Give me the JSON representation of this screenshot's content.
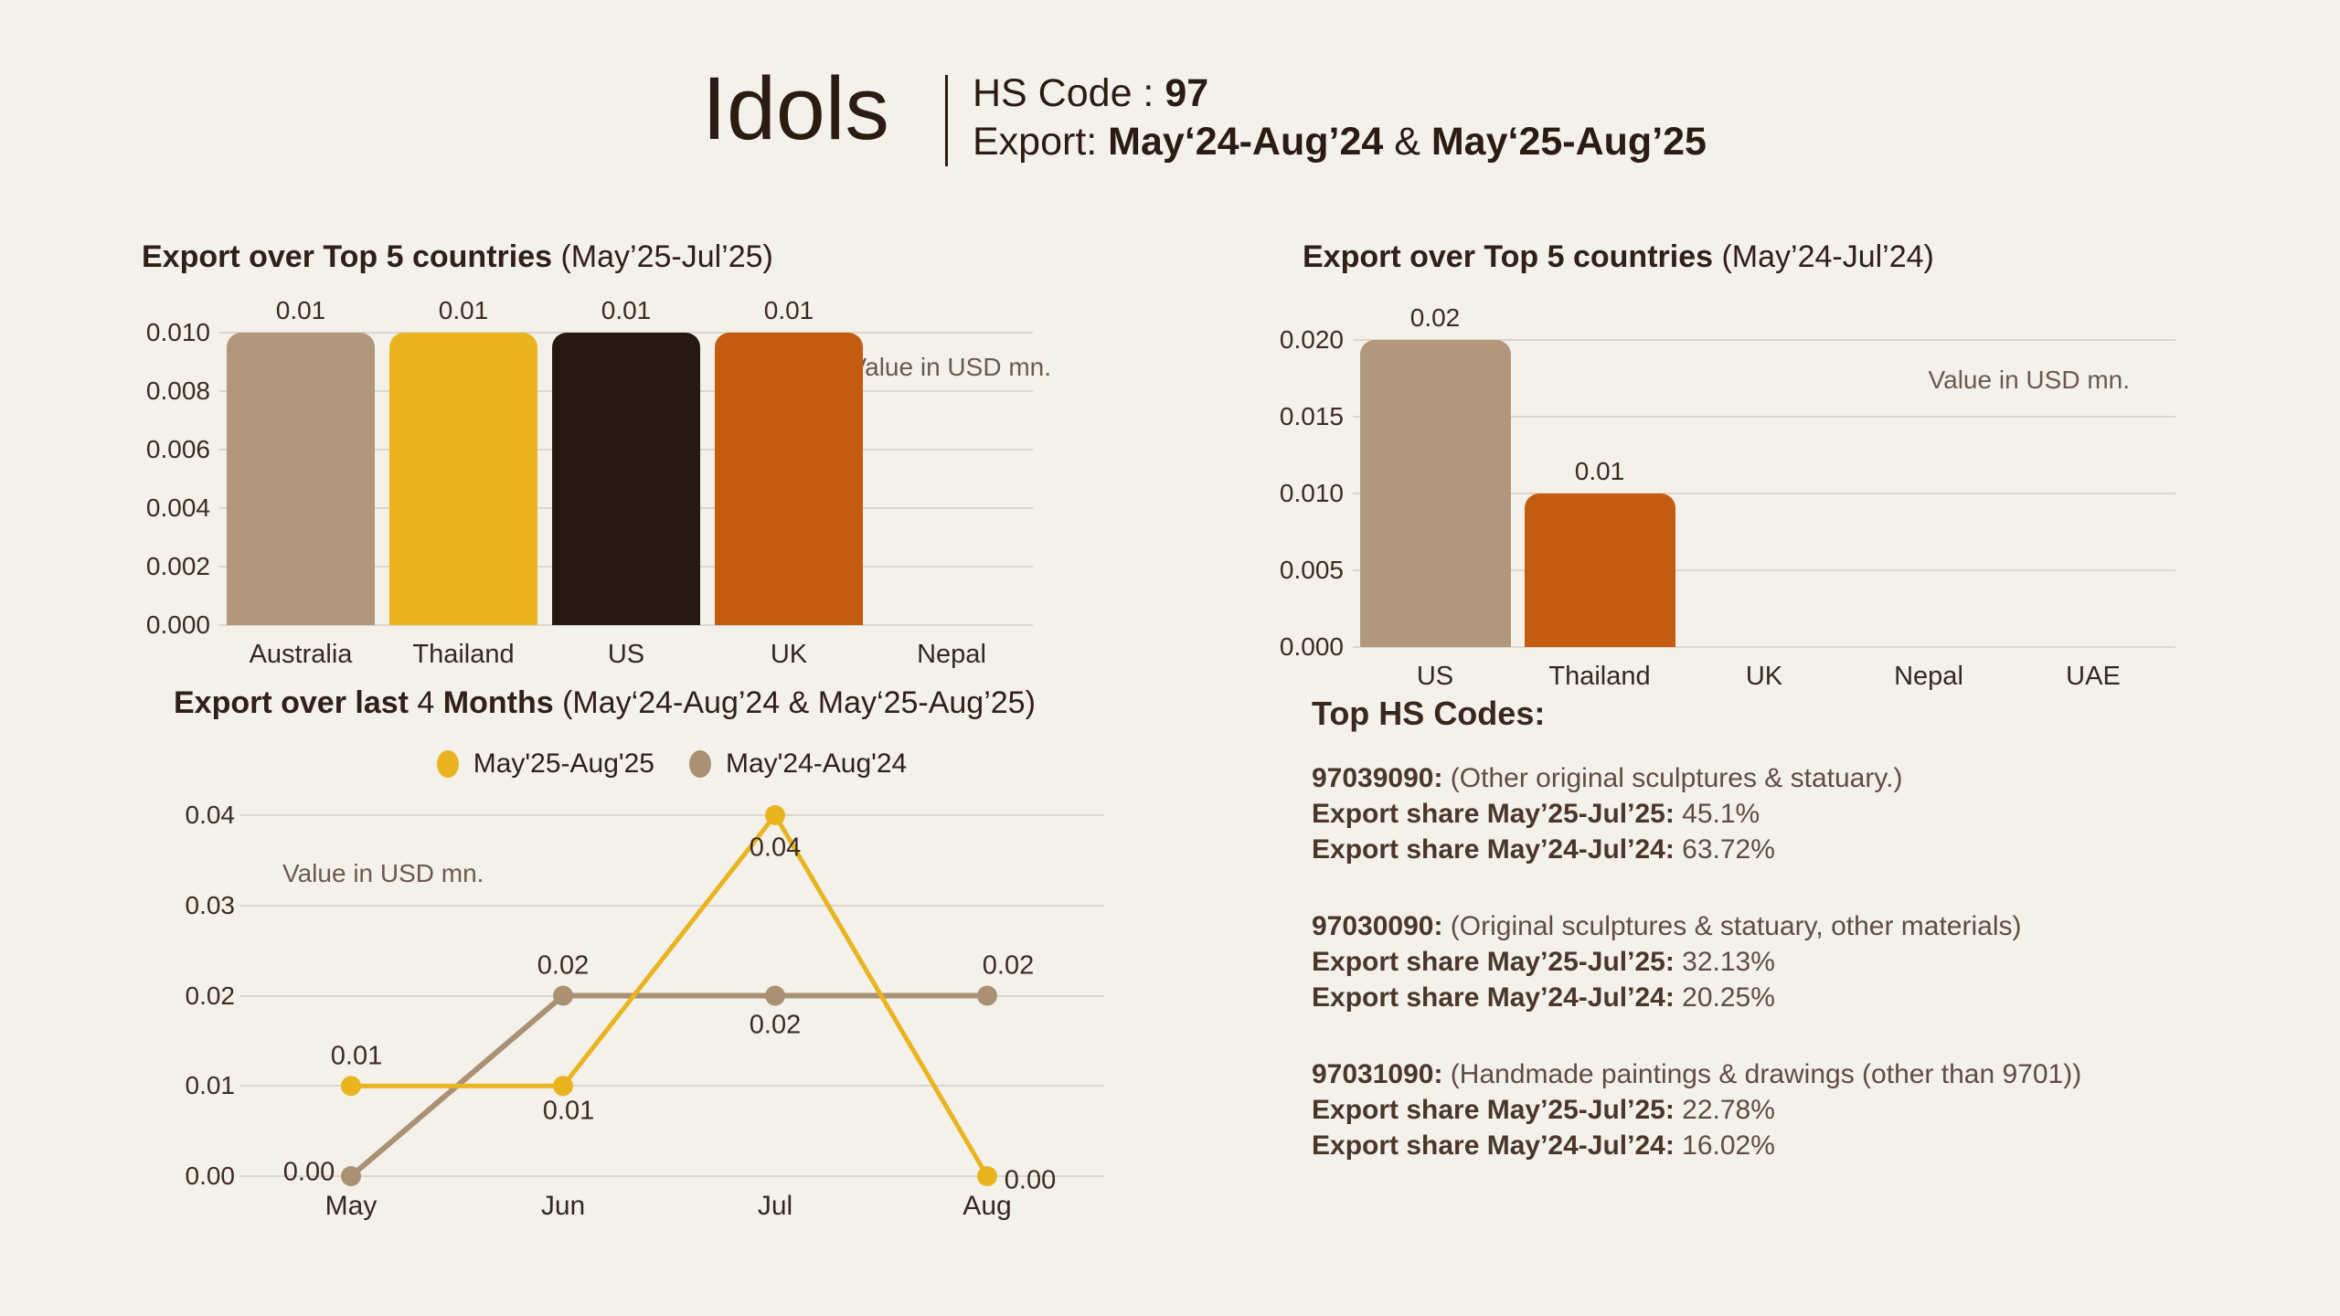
{
  "header": {
    "title": "Idols",
    "hs_code_label": "HS Code : ",
    "hs_code_value": "97",
    "export_label": "Export: ",
    "export_range_1": "May‘24-Aug’24",
    "export_amp": " & ",
    "export_range_2": "May‘25-Aug’25"
  },
  "chart_data": [
    {
      "id": "export-top5-2025",
      "type": "bar",
      "title_bold": "Export over Top 5 countries",
      "title_suffix": " (May’25-Jul’25)",
      "note": "Value in USD mn.",
      "categories": [
        "Australia",
        "Thailand",
        "US",
        "UK",
        "Nepal"
      ],
      "values": [
        0.01,
        0.01,
        0.01,
        0.01,
        0
      ],
      "value_labels": [
        "0.01",
        "0.01",
        "0.01",
        "0.01",
        ""
      ],
      "bar_colors": [
        "#b1977b",
        "#e9b420",
        "#261911",
        "#c35c10",
        "none"
      ],
      "ylim": [
        0,
        0.01
      ],
      "yticks": [
        "0.010",
        "0.008",
        "0.006",
        "0.004",
        "0.002",
        "0.000"
      ],
      "grid": true,
      "legend_position": "none",
      "xlabel": "",
      "ylabel": "Value in USD mn."
    },
    {
      "id": "export-top5-2024",
      "type": "bar",
      "title_bold": "Export over Top 5 countries",
      "title_suffix": " (May’24-Jul’24)",
      "note": "Value in USD mn.",
      "categories": [
        "US",
        "Thailand",
        "UK",
        "Nepal",
        "UAE"
      ],
      "values": [
        0.02,
        0.01,
        0,
        0,
        0
      ],
      "value_labels": [
        "0.02",
        "0.01",
        "",
        "",
        ""
      ],
      "bar_colors": [
        "#b1977b",
        "#c35c10",
        "none",
        "none",
        "none"
      ],
      "ylim": [
        0,
        0.02
      ],
      "yticks": [
        "0.020",
        "0.015",
        "0.010",
        "0.005",
        "0.000"
      ],
      "grid": true,
      "legend_position": "none",
      "xlabel": "",
      "ylabel": "Value in USD mn."
    },
    {
      "id": "export-last-4-months",
      "type": "line",
      "title_bold": "Export over last",
      "title_mid": " 4 ",
      "title_bold2": "Months",
      "title_suffix": " (May‘24-Aug’24 & May‘25-Aug’25)",
      "note": "Value in USD mn.",
      "x": [
        "May",
        "Jun",
        "Jul",
        "Aug"
      ],
      "series": [
        {
          "name": "May'25-Aug'25",
          "color": "#e9b420",
          "values": [
            0.01,
            0.01,
            0.04,
            0.0
          ],
          "labels": [
            "0.01",
            "0.01",
            "0.04",
            "0.00"
          ]
        },
        {
          "name": "May'24-Aug'24",
          "color": "#aa9174",
          "values": [
            0.0,
            0.02,
            0.02,
            0.02
          ],
          "labels": [
            "0.00",
            "0.02",
            "0.02",
            "0.02"
          ]
        }
      ],
      "ylim": [
        0,
        0.04
      ],
      "yticks": [
        "0.04",
        "0.03",
        "0.02",
        "0.01",
        "0.00"
      ],
      "grid": true,
      "legend_position": "top"
    }
  ],
  "hs_codes": {
    "heading": "Top HS Codes:",
    "items": [
      {
        "code": "97039090:",
        "desc": " (Other original sculptures & statuary.)",
        "share_label_25": "Export share May’25-Jul’25:",
        "share_25": " 45.1%",
        "share_label_24": "Export share May’24-Jul’24:",
        "share_24": " 63.72%"
      },
      {
        "code": "97030090:",
        "desc": " (Original sculptures & statuary, other materials)",
        "share_label_25": "Export share May’25-Jul’25:",
        "share_25": " 32.13%",
        "share_label_24": "Export share May’24-Jul’24:",
        "share_24": " 20.25%"
      },
      {
        "code": "97031090:",
        "desc": " (Handmade paintings & drawings (other than 9701))",
        "share_label_25": "Export share May’25-Jul’25:",
        "share_25": " 22.78%",
        "share_label_24": "Export share May’24-Jul’24:",
        "share_24": " 16.02%"
      }
    ]
  }
}
